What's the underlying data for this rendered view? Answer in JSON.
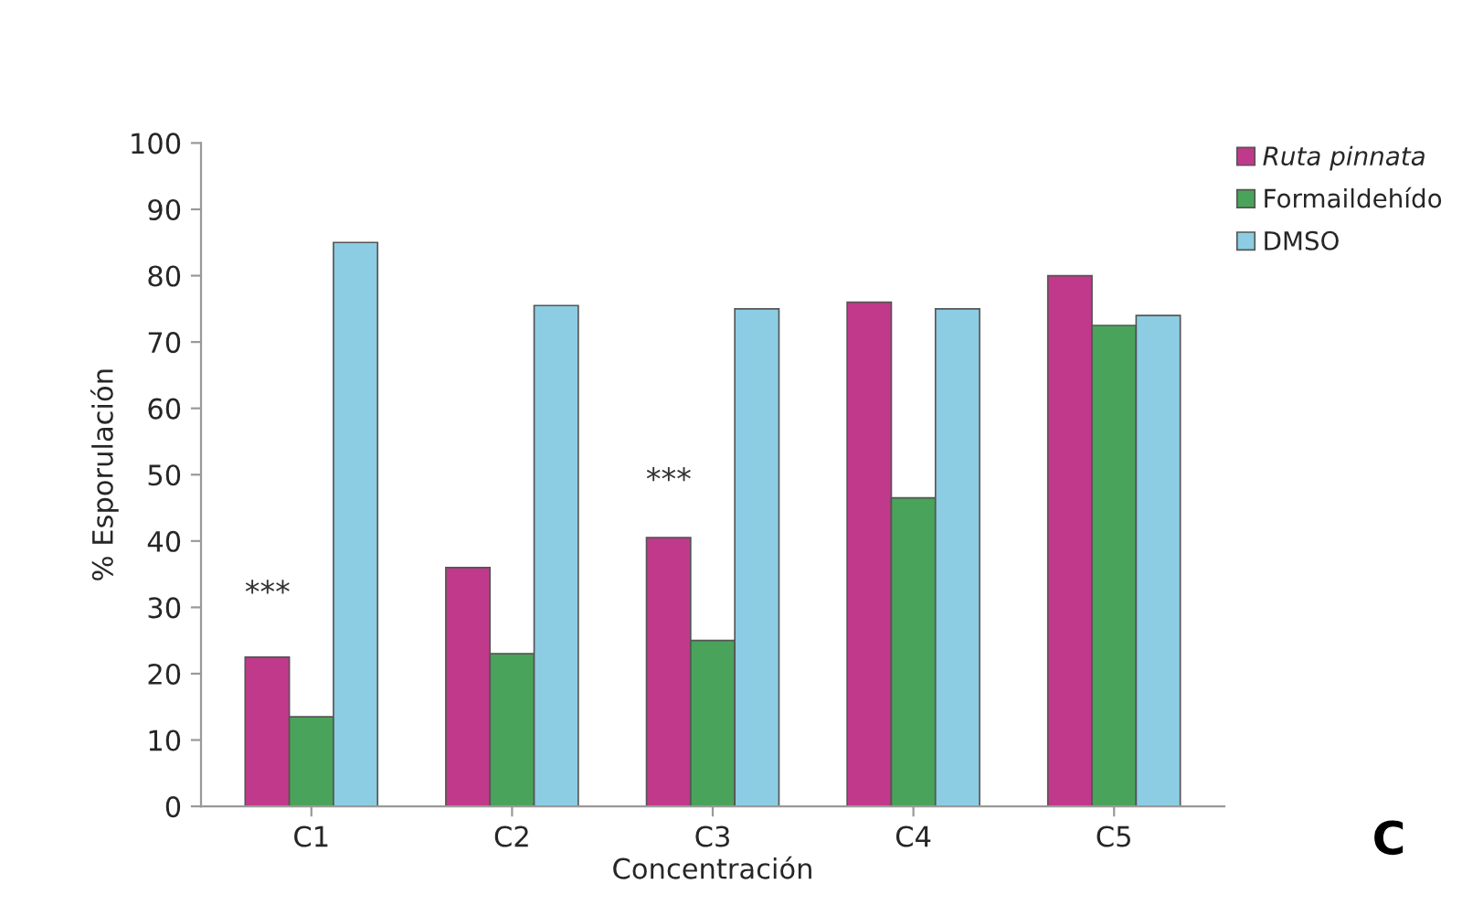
{
  "chart_data": {
    "type": "bar",
    "xlabel": "Concentración",
    "ylabel": "% Esporulación",
    "categories": [
      "C1",
      "C2",
      "C3",
      "C4",
      "C5"
    ],
    "series": [
      {
        "name": "Ruta pinnata",
        "color": "#c0398a",
        "values": [
          22.5,
          36,
          40.5,
          76,
          80
        ]
      },
      {
        "name": "Formaildehído",
        "color": "#4aa35a",
        "values": [
          13.5,
          23,
          25,
          46.5,
          72.5
        ]
      },
      {
        "name": "DMSO",
        "color": "#8ccde3",
        "values": [
          85,
          75.5,
          75,
          75,
          74
        ]
      }
    ],
    "ylim": [
      0,
      100
    ],
    "yticks": [
      0,
      10,
      20,
      30,
      40,
      50,
      60,
      70,
      80,
      90,
      100
    ],
    "grid": false,
    "legend": "top right",
    "annotations": [
      "***",
      "***",
      "C"
    ]
  }
}
